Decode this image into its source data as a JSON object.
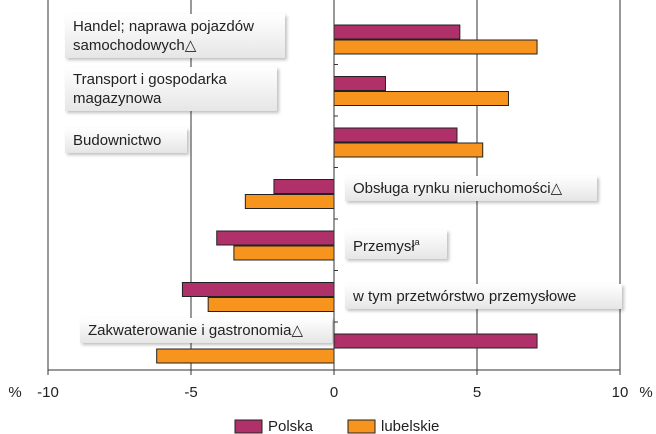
{
  "chart_data": {
    "type": "barh",
    "categories": [
      "Handel; naprawa pojazdów samochodowych",
      "Transport i gospodarka magazynowa",
      "Budownictwo",
      "Obsługa rynku nieruchomości",
      "Przemysł",
      "w tym przetwórstwo przemysłowe",
      "Zakwaterowanie i gastronomia"
    ],
    "category_notes": [
      "△",
      null,
      null,
      "△",
      "a",
      null,
      "△"
    ],
    "series": [
      {
        "name": "Polska",
        "color": "#b0306a",
        "values": [
          4.4,
          1.8,
          4.3,
          -2.1,
          -4.1,
          -5.3,
          7.1
        ]
      },
      {
        "name": "lubelskie",
        "color": "#f7941d",
        "values": [
          7.1,
          6.1,
          5.2,
          -3.1,
          -3.5,
          -4.4,
          -6.2
        ]
      }
    ],
    "xlabel": "%",
    "xlim": [
      -10,
      10
    ],
    "xticks": [
      -10,
      -5,
      0,
      5,
      10
    ],
    "grid": true,
    "legend": "bottom"
  }
}
